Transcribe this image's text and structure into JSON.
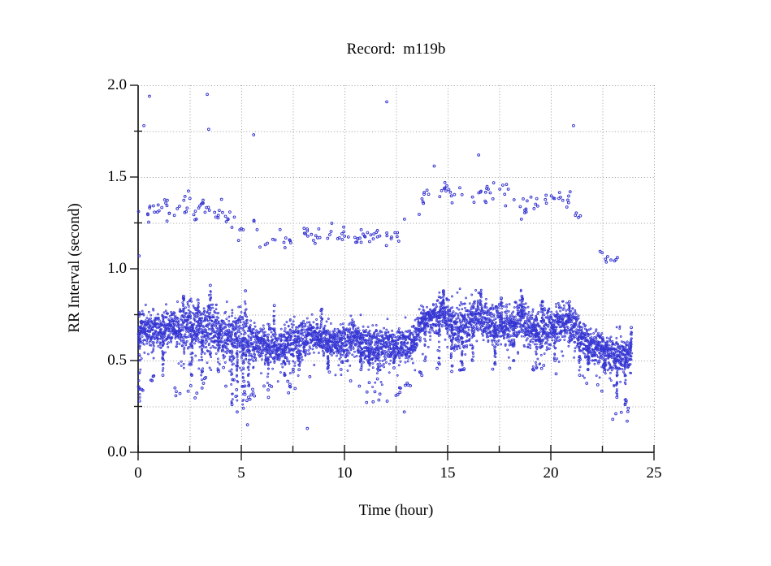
{
  "page": {
    "background": "#ffffff"
  },
  "chart_data": {
    "type": "scatter",
    "title": "Record:  m119b",
    "xlabel": "Time (hour)",
    "ylabel": "RR Interval (second)",
    "xlim": [
      0,
      25
    ],
    "ylim": [
      0.0,
      2.0
    ],
    "x_data_end_hours": 23.9,
    "grid": {
      "style": "dotted",
      "color": "#9a9a9a",
      "on": true
    },
    "legend": {
      "shown": false
    },
    "axis_color": "#1a1a1a",
    "text_color": "#000000",
    "marker": {
      "shape": "circle",
      "radius_px": 1.2,
      "stroke": "#3030d0",
      "fill": "rgba(110,110,235,0.4)"
    },
    "x_major_ticks": [
      {
        "value": 0,
        "label": "0"
      },
      {
        "value": 5,
        "label": "5"
      },
      {
        "value": 10,
        "label": "10"
      },
      {
        "value": 15,
        "label": "15"
      },
      {
        "value": 20,
        "label": "20"
      },
      {
        "value": 25,
        "label": "25"
      }
    ],
    "x_minor_ticks": [
      2.5,
      7.5,
      12.5,
      17.5,
      22.5
    ],
    "y_major_ticks": [
      {
        "value": 0.0,
        "label": "0.0"
      },
      {
        "value": 0.5,
        "label": "0.5"
      },
      {
        "value": 1.0,
        "label": "1.0"
      },
      {
        "value": 1.5,
        "label": "1.5"
      },
      {
        "value": 2.0,
        "label": "2.0"
      }
    ],
    "y_minor_ticks": [
      0.25,
      0.75,
      1.25,
      1.75
    ],
    "series": [
      {
        "name": "rr-dense-band",
        "role": "dense-band",
        "x_step_hours": 0.02,
        "points_per_step": 4,
        "envelope_h_center_halfwidth": [
          [
            0,
            0.66,
            0.07
          ],
          [
            0.5,
            0.67,
            0.07
          ],
          [
            1,
            0.67,
            0.07
          ],
          [
            1.5,
            0.66,
            0.08
          ],
          [
            2,
            0.68,
            0.09
          ],
          [
            2.5,
            0.71,
            0.09
          ],
          [
            3,
            0.67,
            0.1
          ],
          [
            3.5,
            0.68,
            0.1
          ],
          [
            4,
            0.64,
            0.09
          ],
          [
            4.5,
            0.62,
            0.1
          ],
          [
            5,
            0.63,
            0.12
          ],
          [
            5.5,
            0.6,
            0.1
          ],
          [
            6,
            0.58,
            0.08
          ],
          [
            6.5,
            0.57,
            0.08
          ],
          [
            7,
            0.58,
            0.08
          ],
          [
            7.5,
            0.6,
            0.08
          ],
          [
            8,
            0.62,
            0.08
          ],
          [
            8.5,
            0.63,
            0.07
          ],
          [
            9,
            0.62,
            0.07
          ],
          [
            9.5,
            0.6,
            0.07
          ],
          [
            10,
            0.6,
            0.07
          ],
          [
            10.5,
            0.62,
            0.07
          ],
          [
            11,
            0.58,
            0.08
          ],
          [
            11.5,
            0.56,
            0.09
          ],
          [
            12,
            0.58,
            0.08
          ],
          [
            12.5,
            0.58,
            0.07
          ],
          [
            13,
            0.59,
            0.07
          ],
          [
            13.4,
            0.61,
            0.07
          ],
          [
            13.7,
            0.7,
            0.07
          ],
          [
            14,
            0.72,
            0.07
          ],
          [
            14.5,
            0.74,
            0.08
          ],
          [
            14.8,
            0.77,
            0.08
          ],
          [
            15.1,
            0.71,
            0.09
          ],
          [
            15.5,
            0.67,
            0.1
          ],
          [
            16,
            0.7,
            0.09
          ],
          [
            16.5,
            0.76,
            0.08
          ],
          [
            17,
            0.7,
            0.09
          ],
          [
            17.5,
            0.7,
            0.09
          ],
          [
            18,
            0.68,
            0.09
          ],
          [
            18.5,
            0.73,
            0.08
          ],
          [
            19,
            0.68,
            0.08
          ],
          [
            19.5,
            0.66,
            0.08
          ],
          [
            20,
            0.68,
            0.08
          ],
          [
            20.5,
            0.7,
            0.08
          ],
          [
            21,
            0.7,
            0.07
          ],
          [
            21.5,
            0.62,
            0.08
          ],
          [
            22,
            0.57,
            0.07
          ],
          [
            22.5,
            0.56,
            0.07
          ],
          [
            23,
            0.53,
            0.07
          ],
          [
            23.5,
            0.53,
            0.08
          ],
          [
            23.9,
            0.52,
            0.07
          ]
        ]
      },
      {
        "name": "upper-cloud",
        "role": "sparse-scatter",
        "envelope_h_center_halfwidth_density": [
          [
            0,
            1.32,
            0.13,
            10
          ],
          [
            1,
            1.33,
            0.1,
            10
          ],
          [
            2,
            1.33,
            0.1,
            10
          ],
          [
            3,
            1.36,
            0.12,
            10
          ],
          [
            4,
            1.3,
            0.12,
            8
          ],
          [
            5,
            1.22,
            0.13,
            8
          ],
          [
            6,
            1.17,
            0.1,
            8
          ],
          [
            7,
            1.15,
            0.1,
            8
          ],
          [
            8,
            1.18,
            0.09,
            7
          ],
          [
            9,
            1.2,
            0.08,
            8
          ],
          [
            10,
            1.18,
            0.07,
            9
          ],
          [
            11,
            1.17,
            0.07,
            9
          ],
          [
            12,
            1.16,
            0.09,
            8
          ],
          [
            13,
            1.21,
            0.09,
            6
          ],
          [
            13.8,
            1.4,
            0.1,
            8
          ],
          [
            14.5,
            1.43,
            0.1,
            9
          ],
          [
            15,
            1.42,
            0.09,
            8
          ],
          [
            16,
            1.4,
            0.1,
            8
          ],
          [
            17,
            1.43,
            0.09,
            8
          ],
          [
            18,
            1.38,
            0.1,
            7
          ],
          [
            19,
            1.35,
            0.1,
            7
          ],
          [
            20,
            1.4,
            0.08,
            9
          ],
          [
            20.8,
            1.38,
            0.1,
            7
          ],
          [
            21.3,
            1.22,
            0.1,
            6
          ],
          [
            22,
            1.1,
            0.08,
            6
          ],
          [
            22.8,
            1.03,
            0.06,
            7
          ],
          [
            23.5,
            1.08,
            0.08,
            5
          ],
          [
            23.9,
            1.1,
            0.08,
            4
          ]
        ]
      },
      {
        "name": "lower-strays",
        "role": "sparse-scatter",
        "envelope_h_center_halfwidth_density": [
          [
            0.1,
            0.36,
            0.09,
            6
          ],
          [
            1,
            0.4,
            0.08,
            4
          ],
          [
            2,
            0.34,
            0.06,
            3
          ],
          [
            3,
            0.35,
            0.1,
            6
          ],
          [
            4,
            0.42,
            0.08,
            4
          ],
          [
            5,
            0.3,
            0.09,
            8
          ],
          [
            6,
            0.34,
            0.08,
            6
          ],
          [
            7,
            0.38,
            0.1,
            5
          ],
          [
            8,
            0.4,
            0.08,
            4
          ],
          [
            9,
            0.42,
            0.06,
            3
          ],
          [
            10,
            0.46,
            0.05,
            2
          ],
          [
            11,
            0.32,
            0.07,
            5
          ],
          [
            12,
            0.3,
            0.06,
            4
          ],
          [
            13,
            0.36,
            0.08,
            4
          ],
          [
            14,
            0.46,
            0.05,
            2
          ],
          [
            15,
            0.45,
            0.05,
            2
          ],
          [
            16,
            0.46,
            0.04,
            1
          ],
          [
            17,
            0.46,
            0.04,
            1
          ],
          [
            18,
            0.46,
            0.04,
            1
          ],
          [
            19,
            0.46,
            0.04,
            1
          ],
          [
            20,
            0.45,
            0.04,
            1
          ],
          [
            21,
            0.42,
            0.05,
            1
          ],
          [
            22,
            0.38,
            0.05,
            2
          ],
          [
            23,
            0.28,
            0.07,
            6
          ],
          [
            23.8,
            0.25,
            0.06,
            5
          ]
        ]
      },
      {
        "name": "downward-spikes",
        "role": "streaks-down",
        "points_h_ymin": [
          [
            0.07,
            0.28
          ],
          [
            1.2,
            0.42
          ],
          [
            2.6,
            0.42
          ],
          [
            3.1,
            0.35
          ],
          [
            3.9,
            0.44
          ],
          [
            4.55,
            0.26
          ],
          [
            4.8,
            0.22
          ],
          [
            5.1,
            0.24
          ],
          [
            5.35,
            0.3
          ],
          [
            6.3,
            0.34
          ],
          [
            7.1,
            0.42
          ],
          [
            7.8,
            0.45
          ],
          [
            9.2,
            0.46
          ],
          [
            10.8,
            0.45
          ],
          [
            11.2,
            0.38
          ],
          [
            11.6,
            0.4
          ],
          [
            12.4,
            0.46
          ],
          [
            13.9,
            0.5
          ],
          [
            14.6,
            0.48
          ],
          [
            15.2,
            0.44
          ],
          [
            15.7,
            0.45
          ],
          [
            16.2,
            0.5
          ],
          [
            17.3,
            0.48
          ],
          [
            18.2,
            0.5
          ],
          [
            19.3,
            0.46
          ],
          [
            20.2,
            0.5
          ],
          [
            21.4,
            0.42
          ],
          [
            21.8,
            0.45
          ],
          [
            22.6,
            0.44
          ],
          [
            23.2,
            0.3
          ],
          [
            23.6,
            0.26
          ]
        ]
      },
      {
        "name": "upward-spikes",
        "role": "streaks-up",
        "points_h_ymax": [
          [
            2.2,
            0.85
          ],
          [
            2.9,
            0.83
          ],
          [
            3.5,
            0.91
          ],
          [
            5.2,
            0.88
          ],
          [
            6.6,
            0.8
          ],
          [
            8.9,
            0.78
          ],
          [
            14.8,
            0.88
          ],
          [
            16.6,
            0.87
          ],
          [
            17.6,
            0.84
          ],
          [
            18.6,
            0.85
          ],
          [
            19.6,
            0.82
          ],
          [
            20.9,
            0.82
          ],
          [
            23.9,
            0.68
          ]
        ]
      },
      {
        "name": "extreme-outliers",
        "role": "points",
        "points_xy": [
          [
            0.05,
            1.07
          ],
          [
            0.28,
            1.78
          ],
          [
            0.55,
            1.94
          ],
          [
            3.35,
            1.95
          ],
          [
            3.42,
            1.76
          ],
          [
            5.6,
            1.73
          ],
          [
            12.05,
            1.91
          ],
          [
            21.1,
            1.78
          ],
          [
            16.5,
            1.62
          ],
          [
            14.35,
            1.56
          ],
          [
            5.3,
            0.15
          ],
          [
            8.2,
            0.13
          ],
          [
            12.9,
            0.22
          ],
          [
            23.0,
            0.18
          ],
          [
            23.15,
            0.21
          ],
          [
            23.7,
            0.17
          ],
          [
            23.75,
            0.24
          ]
        ]
      }
    ]
  }
}
